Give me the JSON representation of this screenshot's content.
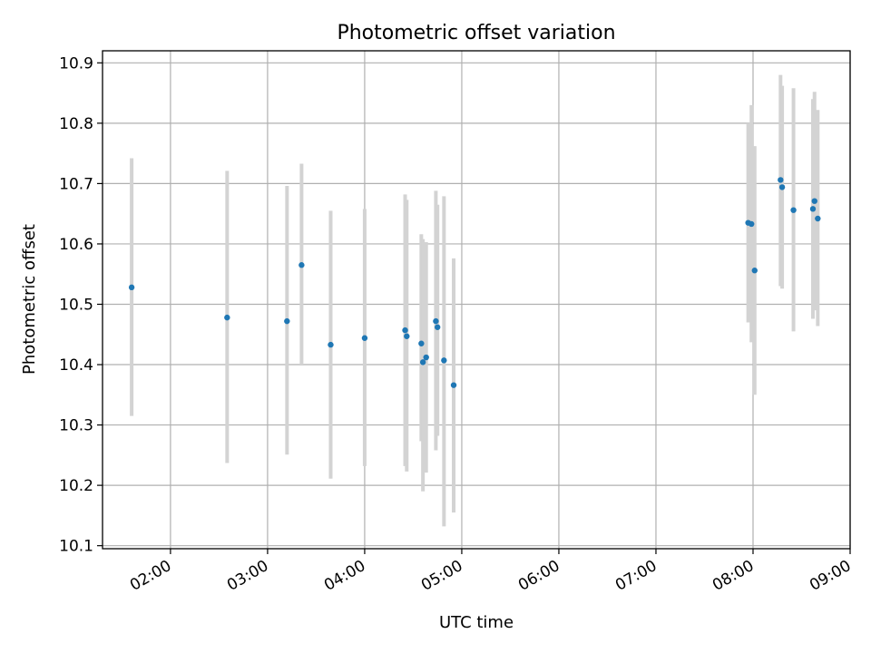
{
  "chart_data": {
    "type": "scatter",
    "title": "Photometric offset variation",
    "xlabel": "UTC time",
    "ylabel": "Photometric offset",
    "x_axis": {
      "type": "time",
      "range": [
        "01:18",
        "09:00"
      ],
      "ticks": [
        "02:00",
        "03:00",
        "04:00",
        "05:00",
        "06:00",
        "07:00",
        "08:00",
        "09:00"
      ]
    },
    "y_axis": {
      "range": [
        10.095,
        10.92
      ],
      "ticks": [
        "10.1",
        "10.2",
        "10.3",
        "10.4",
        "10.5",
        "10.6",
        "10.7",
        "10.8",
        "10.9"
      ]
    },
    "grid": true,
    "colors": {
      "point": "#1f77b4",
      "errorbar": "#d3d3d3",
      "grid": "#b0b0b0"
    },
    "series": [
      {
        "points": [
          {
            "x": "01:36",
            "y": 10.528,
            "ylow": 10.315,
            "yhigh": 10.742
          },
          {
            "x": "02:35",
            "y": 10.478,
            "ylow": 10.237,
            "yhigh": 10.721
          },
          {
            "x": "03:12",
            "y": 10.472,
            "ylow": 10.251,
            "yhigh": 10.696
          },
          {
            "x": "03:21",
            "y": 10.565,
            "ylow": 10.4,
            "yhigh": 10.733
          },
          {
            "x": "03:39",
            "y": 10.433,
            "ylow": 10.211,
            "yhigh": 10.655
          },
          {
            "x": "04:00",
            "y": 10.444,
            "ylow": 10.232,
            "yhigh": 10.658
          },
          {
            "x": "04:25",
            "y": 10.457,
            "ylow": 10.232,
            "yhigh": 10.682
          },
          {
            "x": "04:26",
            "y": 10.447,
            "ylow": 10.223,
            "yhigh": 10.673
          },
          {
            "x": "04:35",
            "y": 10.435,
            "ylow": 10.273,
            "yhigh": 10.616
          },
          {
            "x": "04:36",
            "y": 10.404,
            "ylow": 10.19,
            "yhigh": 10.608
          },
          {
            "x": "04:38",
            "y": 10.412,
            "ylow": 10.221,
            "yhigh": 10.603
          },
          {
            "x": "04:44",
            "y": 10.472,
            "ylow": 10.258,
            "yhigh": 10.688
          },
          {
            "x": "04:45",
            "y": 10.462,
            "ylow": 10.282,
            "yhigh": 10.665
          },
          {
            "x": "04:49",
            "y": 10.407,
            "ylow": 10.132,
            "yhigh": 10.679
          },
          {
            "x": "04:55",
            "y": 10.366,
            "ylow": 10.155,
            "yhigh": 10.576
          },
          {
            "x": "07:57",
            "y": 10.635,
            "ylow": 10.47,
            "yhigh": 10.8
          },
          {
            "x": "07:59",
            "y": 10.633,
            "ylow": 10.437,
            "yhigh": 10.83
          },
          {
            "x": "08:01",
            "y": 10.556,
            "ylow": 10.35,
            "yhigh": 10.762
          },
          {
            "x": "08:17",
            "y": 10.706,
            "ylow": 10.53,
            "yhigh": 10.88
          },
          {
            "x": "08:18",
            "y": 10.694,
            "ylow": 10.526,
            "yhigh": 10.862
          },
          {
            "x": "08:25",
            "y": 10.656,
            "ylow": 10.455,
            "yhigh": 10.858
          },
          {
            "x": "08:37",
            "y": 10.658,
            "ylow": 10.476,
            "yhigh": 10.84
          },
          {
            "x": "08:38",
            "y": 10.671,
            "ylow": 10.49,
            "yhigh": 10.852
          },
          {
            "x": "08:40",
            "y": 10.642,
            "ylow": 10.464,
            "yhigh": 10.822
          }
        ]
      }
    ]
  }
}
